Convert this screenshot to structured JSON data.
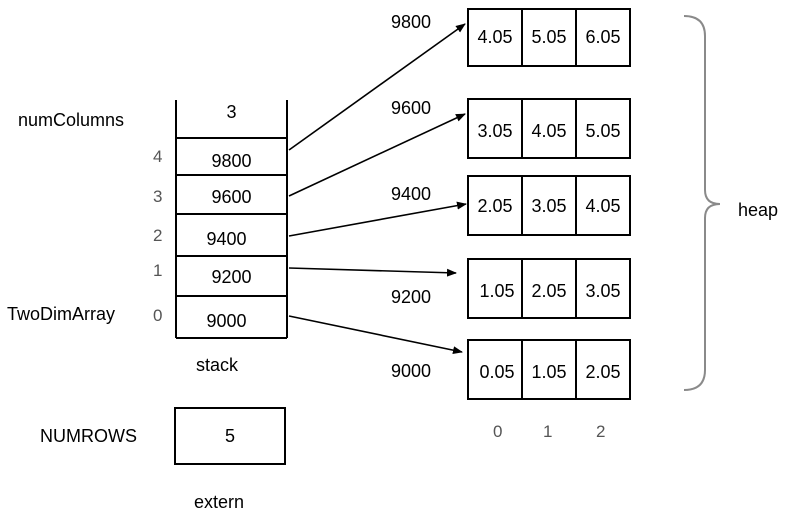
{
  "labels": {
    "num_columns": "numColumns",
    "two_dim_array": "TwoDimArray",
    "numrows": "NUMROWS",
    "stack": "stack",
    "extern": "extern",
    "heap": "heap"
  },
  "stack": {
    "top_value": "3",
    "slots": [
      {
        "index": "4",
        "value": "9800"
      },
      {
        "index": "3",
        "value": "9600"
      },
      {
        "index": "2",
        "value": "9400"
      },
      {
        "index": "1",
        "value": "9200"
      },
      {
        "index": "0",
        "value": "9000"
      }
    ]
  },
  "extern_value": "5",
  "heap": {
    "rows": [
      {
        "address": "9800",
        "values": [
          "4.05",
          "5.05",
          "6.05"
        ]
      },
      {
        "address": "9600",
        "values": [
          "3.05",
          "4.05",
          "5.05"
        ]
      },
      {
        "address": "9400",
        "values": [
          "2.05",
          "3.05",
          "4.05"
        ]
      },
      {
        "address": "9200",
        "values": [
          "1.05",
          "2.05",
          "3.05"
        ]
      },
      {
        "address": "9000",
        "values": [
          "0.05",
          "1.05",
          "2.05"
        ]
      }
    ],
    "column_indices": [
      "0",
      "1",
      "2"
    ]
  },
  "colors": {
    "line": "#000000",
    "brace": "#8a8a8a",
    "index_text": "#555555"
  }
}
